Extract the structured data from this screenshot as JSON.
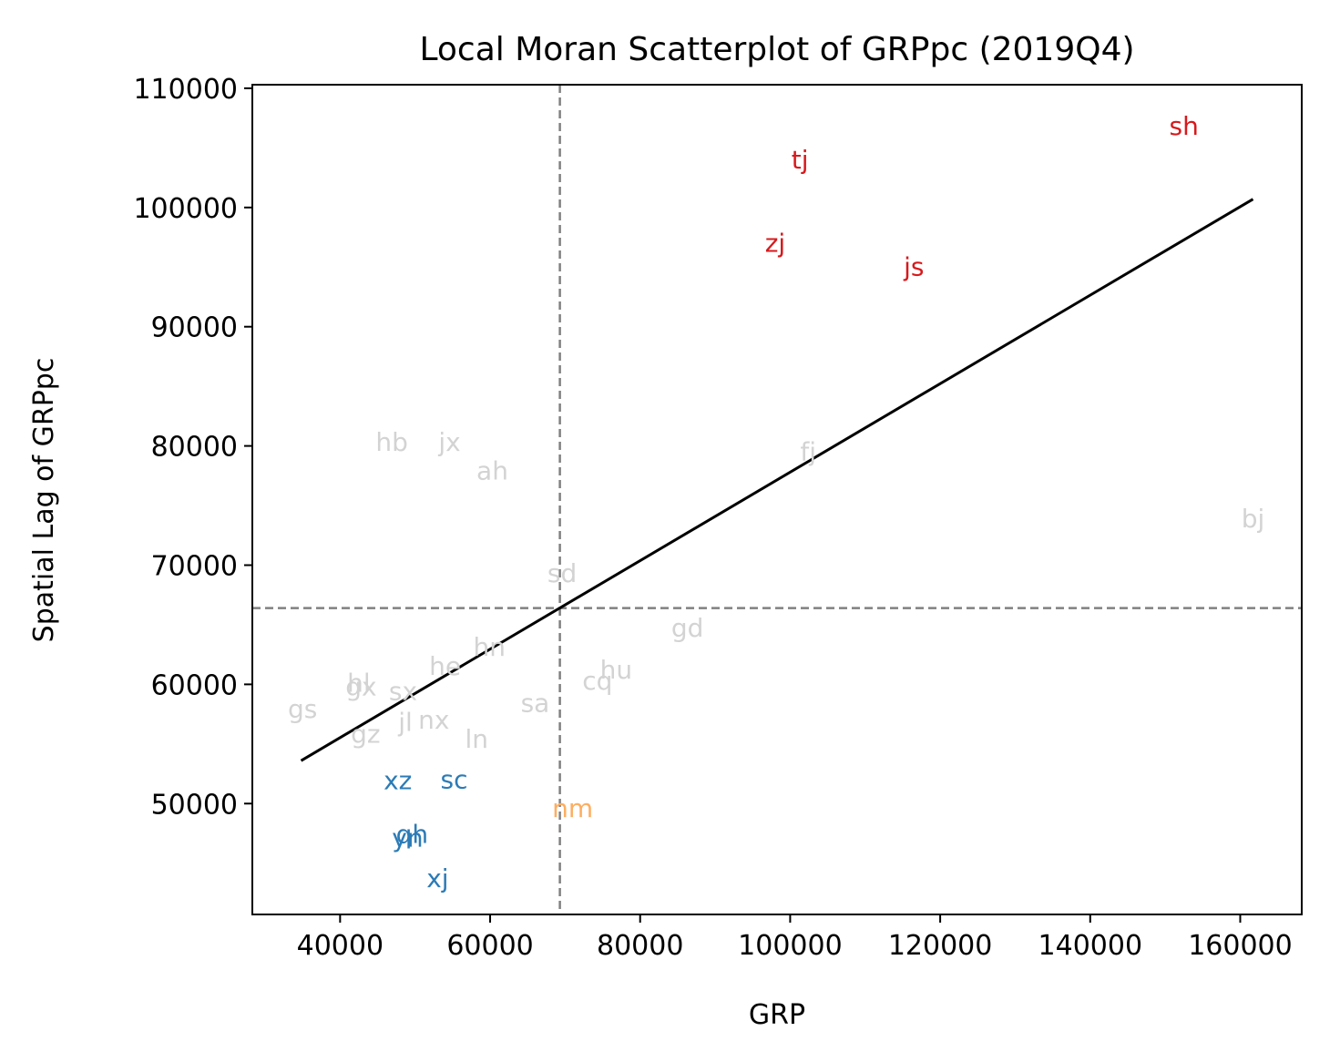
{
  "chart_data": {
    "type": "scatter",
    "title": "Local Moran Scatterplot of GRPpc (2019Q4)",
    "xlabel": "GRP",
    "ylabel": "Spatial Lag of GRPpc",
    "xlim": [
      28300,
      168200
    ],
    "ylim": [
      40700,
      110300
    ],
    "xticks": [
      40000,
      60000,
      80000,
      100000,
      120000,
      140000,
      160000
    ],
    "yticks": [
      50000,
      60000,
      70000,
      80000,
      90000,
      100000,
      110000
    ],
    "mean_x": 69300,
    "mean_y": 66400,
    "fit_line": {
      "x": [
        34800,
        161700
      ],
      "y": [
        53600,
        100700
      ]
    },
    "colors": {
      "HH": "#d7191c",
      "LL": "#2c7bb6",
      "HL": "#fdae61",
      "ns": "#d3d3d3",
      "line": "#000000",
      "ref": "#808080"
    },
    "points": [
      {
        "label": "sh",
        "x": 152500,
        "y": 106700,
        "cluster": "HH"
      },
      {
        "label": "tj",
        "x": 101300,
        "y": 103900,
        "cluster": "HH"
      },
      {
        "label": "zj",
        "x": 98000,
        "y": 96900,
        "cluster": "HH"
      },
      {
        "label": "js",
        "x": 116500,
        "y": 94900,
        "cluster": "HH"
      },
      {
        "label": "hb",
        "x": 46900,
        "y": 80200,
        "cluster": "ns"
      },
      {
        "label": "jx",
        "x": 54600,
        "y": 80200,
        "cluster": "ns"
      },
      {
        "label": "ah",
        "x": 60300,
        "y": 77800,
        "cluster": "ns"
      },
      {
        "label": "fj",
        "x": 102400,
        "y": 79400,
        "cluster": "ns"
      },
      {
        "label": "bj",
        "x": 161700,
        "y": 73800,
        "cluster": "ns"
      },
      {
        "label": "sd",
        "x": 69600,
        "y": 69200,
        "cluster": "ns"
      },
      {
        "label": "gd",
        "x": 86300,
        "y": 64600,
        "cluster": "ns"
      },
      {
        "label": "hn",
        "x": 59900,
        "y": 63000,
        "cluster": "ns"
      },
      {
        "label": "he",
        "x": 54000,
        "y": 61400,
        "cluster": "ns"
      },
      {
        "label": "hu",
        "x": 76800,
        "y": 61100,
        "cluster": "ns"
      },
      {
        "label": "cq",
        "x": 74300,
        "y": 60200,
        "cluster": "ns"
      },
      {
        "label": "hl",
        "x": 42500,
        "y": 60000,
        "cluster": "ns"
      },
      {
        "label": "gx",
        "x": 42800,
        "y": 59700,
        "cluster": "ns"
      },
      {
        "label": "sx",
        "x": 48400,
        "y": 59300,
        "cluster": "ns"
      },
      {
        "label": "sa",
        "x": 66000,
        "y": 58300,
        "cluster": "ns"
      },
      {
        "label": "gs",
        "x": 35000,
        "y": 57800,
        "cluster": "ns"
      },
      {
        "label": "jl",
        "x": 48700,
        "y": 56700,
        "cluster": "ns"
      },
      {
        "label": "nx",
        "x": 52500,
        "y": 56900,
        "cluster": "ns"
      },
      {
        "label": "gz",
        "x": 43400,
        "y": 55700,
        "cluster": "ns"
      },
      {
        "label": "ln",
        "x": 58200,
        "y": 55300,
        "cluster": "ns"
      },
      {
        "label": "xz",
        "x": 47700,
        "y": 51800,
        "cluster": "LL"
      },
      {
        "label": "sc",
        "x": 55200,
        "y": 51900,
        "cluster": "LL"
      },
      {
        "label": "nm",
        "x": 71000,
        "y": 49500,
        "cluster": "HL"
      },
      {
        "label": "qh",
        "x": 49600,
        "y": 47300,
        "cluster": "LL"
      },
      {
        "label": "yn",
        "x": 49000,
        "y": 47000,
        "cluster": "LL"
      },
      {
        "label": "xj",
        "x": 53000,
        "y": 43600,
        "cluster": "LL"
      }
    ]
  }
}
